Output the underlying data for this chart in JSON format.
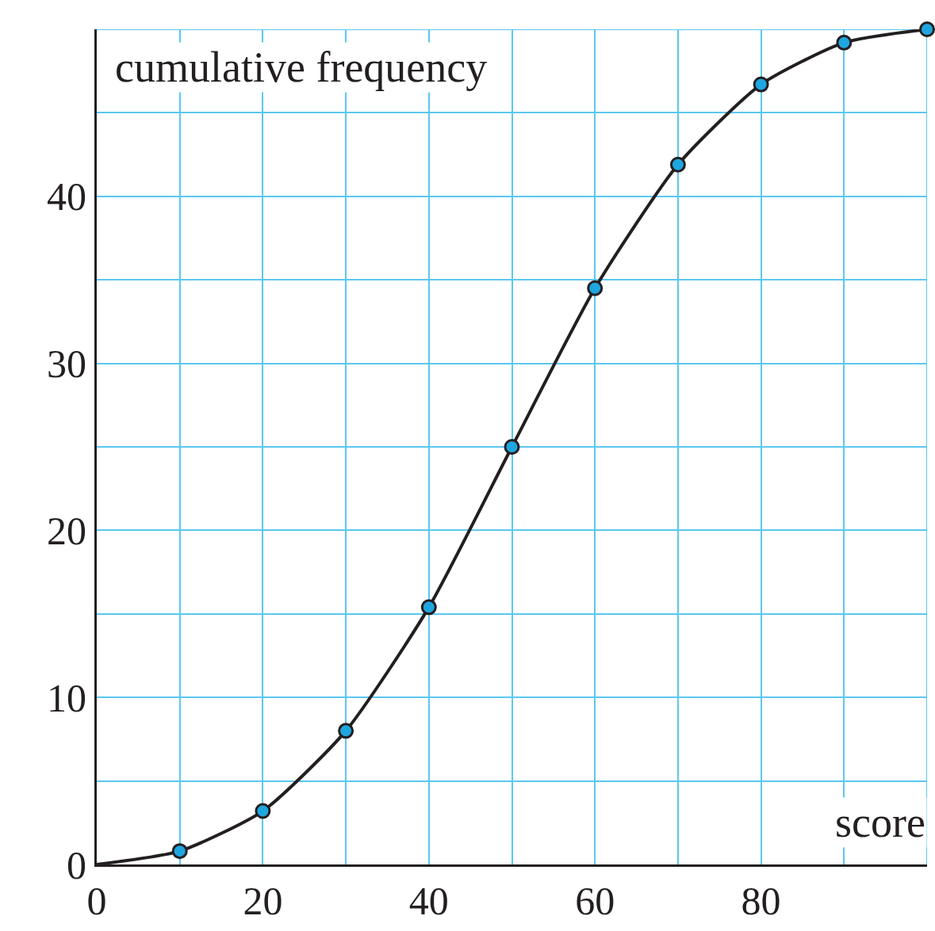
{
  "chart_data": {
    "type": "line",
    "xlabel": "score",
    "ylabel": "cumulative frequency",
    "x": [
      0,
      10,
      20,
      30,
      40,
      50,
      60,
      70,
      80,
      90,
      100
    ],
    "series": [
      {
        "color": "#231f20",
        "marker": "none",
        "values": [
          0,
          0.8,
          3.2,
          8.0,
          15.4,
          25,
          34.5,
          41.9,
          46.7,
          49.2,
          50
        ]
      },
      {
        "type": "scatter",
        "color": "#1ea6e0",
        "marker": "circle",
        "x": [
          10,
          20,
          30,
          40,
          50,
          60,
          70,
          80,
          90,
          100
        ],
        "values": [
          0.8,
          3.2,
          8.0,
          15.4,
          25,
          34.5,
          41.9,
          46.7,
          49.2,
          50
        ]
      }
    ],
    "xlim": [
      0,
      100
    ],
    "ylim": [
      0,
      50
    ],
    "xticks": [
      0,
      {
        "value": 10,
        "label": null
      },
      20,
      {
        "value": 30,
        "label": null
      },
      40,
      {
        "value": 50,
        "label": null
      },
      60,
      {
        "value": 70,
        "label": null
      },
      80,
      {
        "value": 90,
        "label": null
      },
      {
        "value": 100,
        "label": null
      }
    ],
    "yticks": [
      0,
      {
        "value": 5,
        "label": null
      },
      10,
      {
        "value": 15,
        "label": null
      },
      20,
      {
        "value": 25,
        "label": null
      },
      30,
      {
        "value": 35,
        "label": null
      },
      40,
      {
        "value": 45,
        "label": null
      },
      {
        "value": 50,
        "label": null
      }
    ],
    "grid": true,
    "legend": false
  }
}
